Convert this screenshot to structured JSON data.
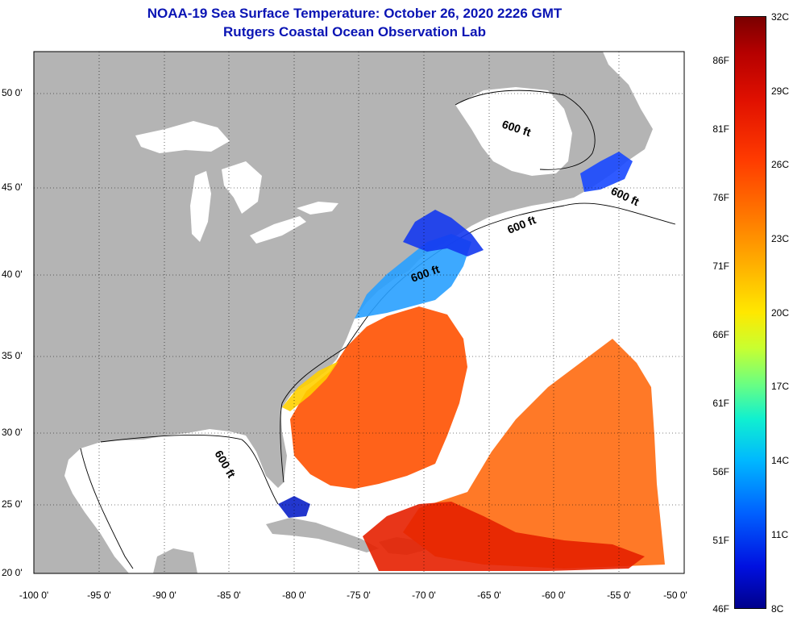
{
  "title_line1": "NOAA-19 Sea Surface Temperature:  October 26, 2020 2226 GMT",
  "title_line2": "Rutgers Coastal Ocean Observation Lab",
  "lat_labels": [
    "50 0'",
    "45 0'",
    "40 0'",
    "35 0'",
    "30 0'",
    "25 0'",
    "20 0'"
  ],
  "lon_labels": [
    "-100 0'",
    "-95 0'",
    "-90 0'",
    "-85 0'",
    "-80 0'",
    "-75 0'",
    "-70 0'",
    "-65 0'",
    "-60 0'",
    "-55 0'",
    "-50 0'"
  ],
  "depth_contour_labels": [
    "600 ft",
    "600 ft",
    "600 ft",
    "600 ft",
    "600 ft"
  ],
  "colorbar": {
    "fahrenheit_labels": [
      "86F",
      "81F",
      "76F",
      "71F",
      "66F",
      "61F",
      "56F",
      "51F",
      "46F"
    ],
    "celsius_labels": [
      "32C",
      "29C",
      "26C",
      "23C",
      "20C",
      "17C",
      "14C",
      "11C",
      "8C"
    ]
  },
  "colors": {
    "title": "#0a14b4",
    "land": "#b4b4b4",
    "ocean_no_data": "#ffffff",
    "warm_sst": "#ff5a00",
    "cool_sst": "#0030ff"
  }
}
